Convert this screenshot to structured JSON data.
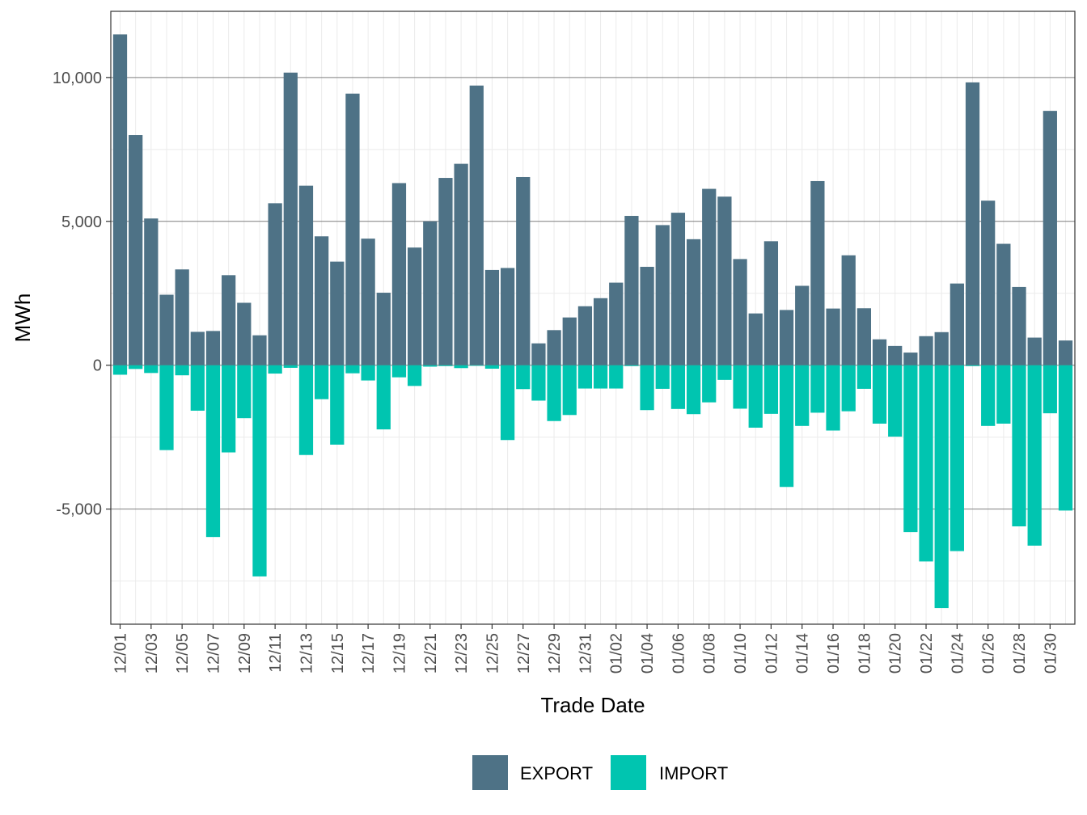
{
  "chart_data": {
    "type": "bar",
    "title": "",
    "xlabel": "Trade Date",
    "ylabel": "MWh",
    "ylim": [
      -9000,
      12300
    ],
    "y_ticks": [
      -5000,
      0,
      5000,
      10000
    ],
    "y_tick_labels": [
      "-5,000",
      "0",
      "5,000",
      "10,000"
    ],
    "y_minor_ticks": [
      -7500,
      -2500,
      2500,
      7500
    ],
    "grid": true,
    "legend_position": "bottom",
    "stacked": "diverging",
    "categories": [
      "12/01",
      "12/02",
      "12/03",
      "12/04",
      "12/05",
      "12/06",
      "12/07",
      "12/08",
      "12/09",
      "12/10",
      "12/11",
      "12/12",
      "12/13",
      "12/14",
      "12/15",
      "12/16",
      "12/17",
      "12/18",
      "12/19",
      "12/20",
      "12/21",
      "12/22",
      "12/23",
      "12/24",
      "12/25",
      "12/26",
      "12/27",
      "12/28",
      "12/29",
      "12/30",
      "12/31",
      "01/01",
      "01/02",
      "01/03",
      "01/04",
      "01/05",
      "01/06",
      "01/07",
      "01/08",
      "01/09",
      "01/10",
      "01/11",
      "01/12",
      "01/13",
      "01/14",
      "01/15",
      "01/16",
      "01/17",
      "01/18",
      "01/19",
      "01/20",
      "01/21",
      "01/22",
      "01/23",
      "01/24",
      "01/25",
      "01/26",
      "01/27",
      "01/28",
      "01/29",
      "01/30",
      "01/31"
    ],
    "x_tick_labels": [
      "12/01",
      "12/03",
      "12/05",
      "12/07",
      "12/09",
      "12/11",
      "12/13",
      "12/15",
      "12/17",
      "12/19",
      "12/21",
      "12/23",
      "12/25",
      "12/27",
      "12/29",
      "12/31",
      "01/02",
      "01/04",
      "01/06",
      "01/08",
      "01/10",
      "01/12",
      "01/14",
      "01/16",
      "01/18",
      "01/20",
      "01/22",
      "01/24",
      "01/26",
      "01/28",
      "01/30"
    ],
    "series": [
      {
        "name": "EXPORT",
        "color": "#4e7286",
        "values": [
          11500,
          8000,
          5100,
          2450,
          3330,
          1160,
          1190,
          3130,
          2170,
          1040,
          5630,
          10170,
          6240,
          4480,
          3600,
          9440,
          4400,
          2520,
          6330,
          4090,
          5000,
          6510,
          7000,
          9720,
          3310,
          3380,
          6540,
          760,
          1220,
          1660,
          2050,
          2330,
          2870,
          5190,
          3420,
          4870,
          5300,
          4380,
          6130,
          5860,
          3690,
          1800,
          4310,
          1920,
          2760,
          6400,
          1970,
          3820,
          1980,
          900,
          670,
          440,
          1010,
          1150,
          2840,
          9830,
          5720,
          4220,
          2720,
          960,
          8840,
          860
        ]
      },
      {
        "name": "IMPORT",
        "color": "#00c5b0",
        "values": [
          -330,
          -130,
          -270,
          -2950,
          -350,
          -1580,
          -5970,
          -3030,
          -1840,
          -7340,
          -290,
          -90,
          -3120,
          -1180,
          -2760,
          -280,
          -530,
          -2230,
          -420,
          -720,
          -50,
          -30,
          -100,
          -20,
          -120,
          -2600,
          -830,
          -1230,
          -1940,
          -1730,
          -810,
          -810,
          -810,
          -30,
          -1560,
          -820,
          -1520,
          -1700,
          -1290,
          -510,
          -1510,
          -2170,
          -1690,
          -4230,
          -2110,
          -1650,
          -2270,
          -1600,
          -820,
          -2030,
          -2480,
          -5800,
          -6820,
          -8440,
          -6460,
          -30,
          -2110,
          -2030,
          -5600,
          -6270,
          -1670,
          -5050
        ]
      }
    ]
  }
}
